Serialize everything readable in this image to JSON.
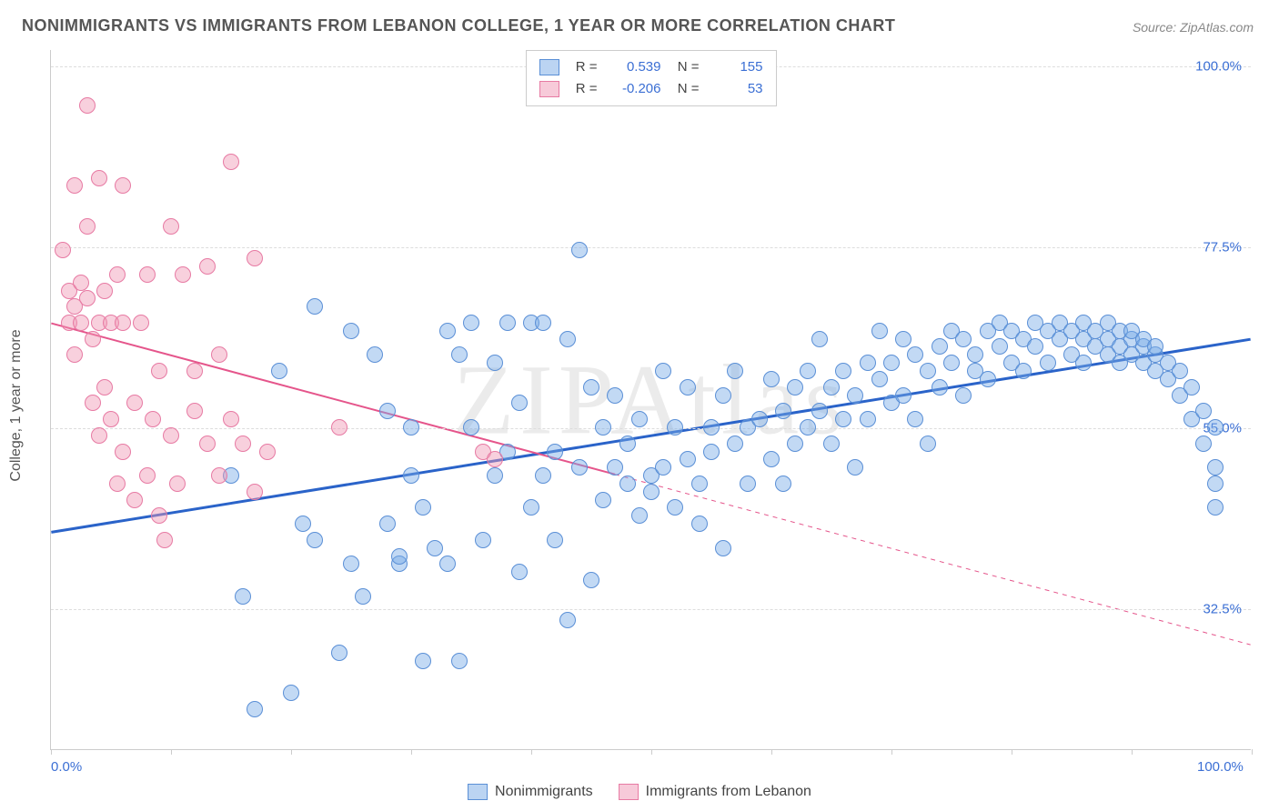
{
  "title": "NONIMMIGRANTS VS IMMIGRANTS FROM LEBANON COLLEGE, 1 YEAR OR MORE CORRELATION CHART",
  "source": "Source: ZipAtlas.com",
  "watermark": "ZIPAtlas",
  "chart": {
    "type": "scatter",
    "ylabel": "College, 1 year or more",
    "xlim": [
      0,
      100
    ],
    "ylim": [
      15,
      102
    ],
    "background_color": "#ffffff",
    "grid_color": "#dddddd",
    "grid_dash": "4,4",
    "marker_radius": 9,
    "yticks": [
      {
        "value": 32.5,
        "label": "32.5%"
      },
      {
        "value": 55.0,
        "label": "55.0%"
      },
      {
        "value": 77.5,
        "label": "77.5%"
      },
      {
        "value": 100.0,
        "label": "100.0%"
      }
    ],
    "xticks_labels": [
      {
        "value": 0,
        "label": "0.0%"
      },
      {
        "value": 100,
        "label": "100.0%"
      }
    ],
    "xticks_marks": [
      0,
      10,
      20,
      30,
      40,
      50,
      60,
      70,
      80,
      90,
      100
    ],
    "series": [
      {
        "name": "Nonimmigrants",
        "color_fill": "rgba(120,170,230,0.45)",
        "color_stroke": "#5a8fd6",
        "correlation_R": "0.539",
        "correlation_N": "155",
        "trend": {
          "x1": 0,
          "y1": 42,
          "x2": 100,
          "y2": 66,
          "solid_until_x": 100,
          "color": "#2a63c9",
          "width": 3
        },
        "points": [
          [
            15,
            49
          ],
          [
            16,
            34
          ],
          [
            17,
            20
          ],
          [
            19,
            62
          ],
          [
            20,
            22
          ],
          [
            21,
            43
          ],
          [
            22,
            70
          ],
          [
            22,
            41
          ],
          [
            24,
            27
          ],
          [
            25,
            38
          ],
          [
            25,
            67
          ],
          [
            26,
            34
          ],
          [
            27,
            64
          ],
          [
            28,
            57
          ],
          [
            28,
            43
          ],
          [
            29,
            38
          ],
          [
            29,
            39
          ],
          [
            30,
            55
          ],
          [
            30,
            49
          ],
          [
            31,
            45
          ],
          [
            31,
            26
          ],
          [
            32,
            40
          ],
          [
            33,
            38
          ],
          [
            33,
            67
          ],
          [
            34,
            26
          ],
          [
            34,
            64
          ],
          [
            35,
            55
          ],
          [
            35,
            68
          ],
          [
            36,
            41
          ],
          [
            37,
            63
          ],
          [
            37,
            49
          ],
          [
            38,
            68
          ],
          [
            38,
            52
          ],
          [
            39,
            37
          ],
          [
            39,
            58
          ],
          [
            40,
            68
          ],
          [
            40,
            45
          ],
          [
            41,
            68
          ],
          [
            41,
            49
          ],
          [
            42,
            52
          ],
          [
            42,
            41
          ],
          [
            43,
            66
          ],
          [
            43,
            31
          ],
          [
            44,
            50
          ],
          [
            44,
            77
          ],
          [
            45,
            60
          ],
          [
            45,
            36
          ],
          [
            46,
            55
          ],
          [
            46,
            46
          ],
          [
            47,
            50
          ],
          [
            47,
            59
          ],
          [
            48,
            53
          ],
          [
            48,
            48
          ],
          [
            49,
            44
          ],
          [
            49,
            56
          ],
          [
            50,
            49
          ],
          [
            50,
            47
          ],
          [
            51,
            50
          ],
          [
            51,
            62
          ],
          [
            52,
            55
          ],
          [
            52,
            45
          ],
          [
            53,
            60
          ],
          [
            53,
            51
          ],
          [
            54,
            48
          ],
          [
            54,
            43
          ],
          [
            55,
            55
          ],
          [
            55,
            52
          ],
          [
            56,
            59
          ],
          [
            56,
            40
          ],
          [
            57,
            53
          ],
          [
            57,
            62
          ],
          [
            58,
            48
          ],
          [
            58,
            55
          ],
          [
            59,
            56
          ],
          [
            60,
            51
          ],
          [
            60,
            61
          ],
          [
            61,
            57
          ],
          [
            61,
            48
          ],
          [
            62,
            60
          ],
          [
            62,
            53
          ],
          [
            63,
            55
          ],
          [
            63,
            62
          ],
          [
            64,
            66
          ],
          [
            64,
            57
          ],
          [
            65,
            60
          ],
          [
            65,
            53
          ],
          [
            66,
            56
          ],
          [
            66,
            62
          ],
          [
            67,
            59
          ],
          [
            67,
            50
          ],
          [
            68,
            63
          ],
          [
            68,
            56
          ],
          [
            69,
            61
          ],
          [
            69,
            67
          ],
          [
            70,
            58
          ],
          [
            70,
            63
          ],
          [
            71,
            66
          ],
          [
            71,
            59
          ],
          [
            72,
            64
          ],
          [
            72,
            56
          ],
          [
            73,
            53
          ],
          [
            73,
            62
          ],
          [
            74,
            65
          ],
          [
            74,
            60
          ],
          [
            75,
            67
          ],
          [
            75,
            63
          ],
          [
            76,
            59
          ],
          [
            76,
            66
          ],
          [
            77,
            64
          ],
          [
            77,
            62
          ],
          [
            78,
            67
          ],
          [
            78,
            61
          ],
          [
            79,
            65
          ],
          [
            79,
            68
          ],
          [
            80,
            63
          ],
          [
            80,
            67
          ],
          [
            81,
            66
          ],
          [
            81,
            62
          ],
          [
            82,
            68
          ],
          [
            82,
            65
          ],
          [
            83,
            67
          ],
          [
            83,
            63
          ],
          [
            84,
            66
          ],
          [
            84,
            68
          ],
          [
            85,
            67
          ],
          [
            85,
            64
          ],
          [
            86,
            66
          ],
          [
            86,
            63
          ],
          [
            86,
            68
          ],
          [
            87,
            67
          ],
          [
            87,
            65
          ],
          [
            88,
            66
          ],
          [
            88,
            64
          ],
          [
            88,
            68
          ],
          [
            89,
            67
          ],
          [
            89,
            65
          ],
          [
            89,
            63
          ],
          [
            90,
            66
          ],
          [
            90,
            64
          ],
          [
            90,
            67
          ],
          [
            91,
            65
          ],
          [
            91,
            63
          ],
          [
            91,
            66
          ],
          [
            92,
            64
          ],
          [
            92,
            62
          ],
          [
            92,
            65
          ],
          [
            93,
            63
          ],
          [
            93,
            61
          ],
          [
            94,
            62
          ],
          [
            94,
            59
          ],
          [
            95,
            60
          ],
          [
            95,
            56
          ],
          [
            96,
            57
          ],
          [
            96,
            53
          ],
          [
            97,
            55
          ],
          [
            97,
            50
          ],
          [
            97,
            48
          ],
          [
            97,
            45
          ]
        ]
      },
      {
        "name": "Immigrants from Lebanon",
        "color_fill": "rgba(240,150,180,0.45)",
        "color_stroke": "#e77aa3",
        "correlation_R": "-0.206",
        "correlation_N": "53",
        "trend": {
          "x1": 0,
          "y1": 68,
          "x2": 100,
          "y2": 28,
          "solid_until_x": 47,
          "color": "#e5558b",
          "width": 2
        },
        "points": [
          [
            1,
            77
          ],
          [
            1.5,
            68
          ],
          [
            1.5,
            72
          ],
          [
            2,
            85
          ],
          [
            2,
            70
          ],
          [
            2,
            64
          ],
          [
            2.5,
            68
          ],
          [
            2.5,
            73
          ],
          [
            3,
            95
          ],
          [
            3,
            80
          ],
          [
            3,
            71
          ],
          [
            3.5,
            66
          ],
          [
            3.5,
            58
          ],
          [
            4,
            86
          ],
          [
            4,
            68
          ],
          [
            4,
            54
          ],
          [
            4.5,
            72
          ],
          [
            4.5,
            60
          ],
          [
            5,
            68
          ],
          [
            5,
            56
          ],
          [
            5.5,
            74
          ],
          [
            5.5,
            48
          ],
          [
            6,
            85
          ],
          [
            6,
            68
          ],
          [
            6,
            52
          ],
          [
            7,
            58
          ],
          [
            7,
            46
          ],
          [
            7.5,
            68
          ],
          [
            8,
            74
          ],
          [
            8,
            49
          ],
          [
            8.5,
            56
          ],
          [
            9,
            62
          ],
          [
            9,
            44
          ],
          [
            9.5,
            41
          ],
          [
            10,
            80
          ],
          [
            10,
            54
          ],
          [
            10.5,
            48
          ],
          [
            11,
            74
          ],
          [
            12,
            62
          ],
          [
            12,
            57
          ],
          [
            13,
            75
          ],
          [
            13,
            53
          ],
          [
            14,
            64
          ],
          [
            14,
            49
          ],
          [
            15,
            88
          ],
          [
            15,
            56
          ],
          [
            16,
            53
          ],
          [
            17,
            76
          ],
          [
            17,
            47
          ],
          [
            18,
            52
          ],
          [
            24,
            55
          ],
          [
            36,
            52
          ],
          [
            37,
            51
          ]
        ]
      }
    ]
  },
  "legend_top": {
    "label_R": "R =",
    "label_N": "N =",
    "rows": [
      {
        "swatch": "blue",
        "R": "0.539",
        "N": "155"
      },
      {
        "swatch": "pink",
        "R": "-0.206",
        "N": "53"
      }
    ]
  },
  "legend_bottom": {
    "items": [
      {
        "swatch": "blue",
        "label": "Nonimmigrants"
      },
      {
        "swatch": "pink",
        "label": "Immigrants from Lebanon"
      }
    ]
  }
}
